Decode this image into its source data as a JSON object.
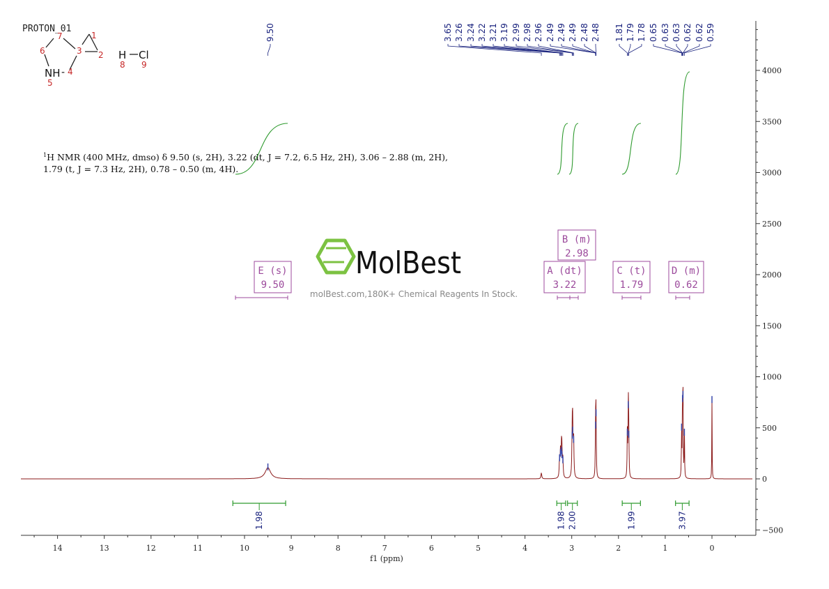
{
  "experiment_label": "PROTON_01",
  "structure": {
    "atom_numbers": [
      "1",
      "2",
      "3",
      "4",
      "5",
      "6",
      "7",
      "8",
      "9"
    ],
    "nh_label": "NH",
    "h_label": "H",
    "cl_label": "Cl"
  },
  "description": {
    "line1_sup": "1",
    "line1": "H NMR (400 MHz, dmso) δ 9.50 (s, 2H), 3.22 (dt, J = 7.2, 6.5 Hz, 2H), 3.06 – 2.88 (m, 2H),",
    "line2": "1.79 (t, J = 7.3 Hz, 2H), 0.78 – 0.50 (m, 4H)."
  },
  "watermark": {
    "brand": "MolBest",
    "tagline": "molBest.com,180K+ Chemical Reagents In Stock."
  },
  "colors": {
    "spectrum": "#8b1a1a",
    "integral": "#2e9a2e",
    "peak_label": "#1a237e",
    "multiplet_box": "#9c4a9c",
    "logo": "#7cc242",
    "axis": "#333333"
  },
  "chart_data": {
    "type": "line",
    "xlabel": "f1 (ppm)",
    "x_ticks": [
      14,
      13,
      12,
      11,
      10,
      9,
      8,
      7,
      6,
      5,
      4,
      3,
      2,
      1,
      0
    ],
    "xlim": [
      14.8,
      -0.9
    ],
    "ylim": [
      -500,
      4500
    ],
    "y_ticks": [
      4000,
      3500,
      3000,
      2500,
      2000,
      1500,
      1000,
      500,
      0,
      -500
    ],
    "peaks": [
      {
        "ppm": 9.5,
        "height": 110,
        "width": 0.07
      },
      {
        "ppm": 3.65,
        "height": 60,
        "width": 0.01
      },
      {
        "ppm": 3.26,
        "height": 200,
        "width": 0.008
      },
      {
        "ppm": 3.24,
        "height": 250,
        "width": 0.008
      },
      {
        "ppm": 3.22,
        "height": 270,
        "width": 0.008
      },
      {
        "ppm": 3.21,
        "height": 230,
        "width": 0.008
      },
      {
        "ppm": 3.19,
        "height": 180,
        "width": 0.008
      },
      {
        "ppm": 2.99,
        "height": 420,
        "width": 0.008
      },
      {
        "ppm": 2.98,
        "height": 470,
        "width": 0.008
      },
      {
        "ppm": 2.96,
        "height": 380,
        "width": 0.008
      },
      {
        "ppm": 2.49,
        "height": 520,
        "width": 0.006
      },
      {
        "ppm": 2.48,
        "height": 640,
        "width": 0.006
      },
      {
        "ppm": 1.81,
        "height": 450,
        "width": 0.006
      },
      {
        "ppm": 1.79,
        "height": 720,
        "width": 0.006
      },
      {
        "ppm": 1.78,
        "height": 430,
        "width": 0.006
      },
      {
        "ppm": 0.65,
        "height": 500,
        "width": 0.005
      },
      {
        "ppm": 0.63,
        "height": 780,
        "width": 0.005
      },
      {
        "ppm": 0.62,
        "height": 820,
        "width": 0.005
      },
      {
        "ppm": 0.59,
        "height": 450,
        "width": 0.005
      },
      {
        "ppm": 0.0,
        "height": 770,
        "width": 0.004
      }
    ],
    "peak_labels": [
      "9.50",
      "3.65",
      "3.26",
      "3.24",
      "3.22",
      "3.21",
      "3.19",
      "2.99",
      "2.98",
      "2.96",
      "2.49",
      "2.49",
      "2.49",
      "2.48",
      "2.48",
      "1.81",
      "1.79",
      "1.78",
      "0.65",
      "0.63",
      "0.63",
      "0.62",
      "0.62",
      "0.59"
    ],
    "integrals": [
      {
        "from": 10.25,
        "to": 9.12,
        "value": "1.98"
      },
      {
        "from": 3.32,
        "to": 3.13,
        "value": "1.98"
      },
      {
        "from": 3.09,
        "to": 2.88,
        "value": "2.00"
      },
      {
        "from": 1.92,
        "to": 1.53,
        "value": "1.99"
      },
      {
        "from": 0.78,
        "to": 0.49,
        "value": "3.97"
      }
    ],
    "multiplets": [
      {
        "letter": "E (s)",
        "shift": "9.50"
      },
      {
        "letter": "A (dt)",
        "shift": "3.22"
      },
      {
        "letter": "B (m)",
        "shift": "2.98"
      },
      {
        "letter": "C (t)",
        "shift": "1.79"
      },
      {
        "letter": "D (m)",
        "shift": "0.62"
      }
    ]
  }
}
